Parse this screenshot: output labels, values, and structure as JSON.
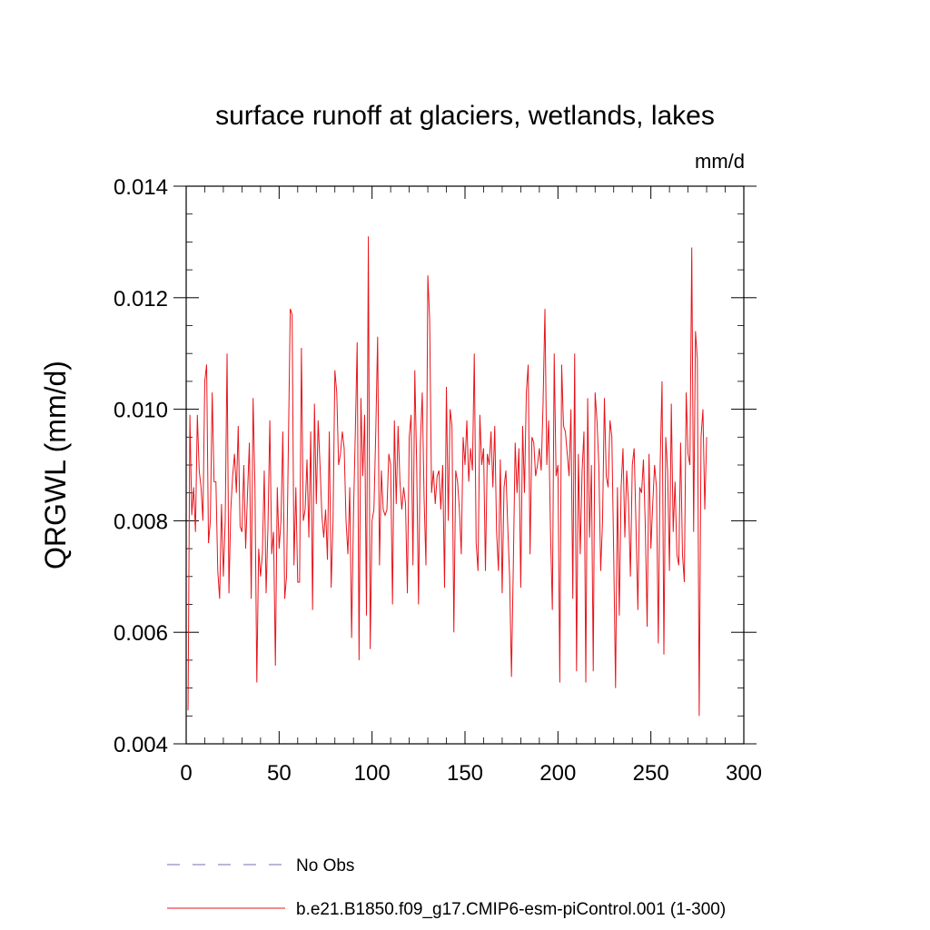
{
  "chart_data": {
    "type": "line",
    "title": "surface runoff at glaciers, wetlands, lakes",
    "units": "mm/d",
    "ylabel": "QRGWL  (mm/d)",
    "xlabel": "",
    "xlim": [
      0,
      300
    ],
    "ylim": [
      0.004,
      0.014
    ],
    "x_ticks": [
      0,
      50,
      100,
      150,
      200,
      250,
      300
    ],
    "x_tick_labels": [
      "0",
      "50",
      "100",
      "150",
      "200",
      "250",
      "300"
    ],
    "y_ticks": [
      0.004,
      0.006,
      0.008,
      0.01,
      0.012,
      0.014
    ],
    "y_tick_labels": [
      "0.004",
      "0.006",
      "0.008",
      "0.010",
      "0.012",
      "0.014"
    ],
    "grid": false,
    "legend_position": "bottom",
    "series": [
      {
        "name": "No Obs",
        "color": "#7b68b5",
        "dash": "dashed",
        "values": []
      },
      {
        "name": "b.e21.B1850.f09_g17.CMIP6-esm-piControl.001 (1-300)",
        "color": "#e8141b",
        "dash": "solid",
        "x_start": 1,
        "values": [
          0.0046,
          0.0099,
          0.0081,
          0.0086,
          0.0078,
          0.0099,
          0.0089,
          0.0086,
          0.008,
          0.0105,
          0.0108,
          0.0076,
          0.008,
          0.0103,
          0.0087,
          0.0087,
          0.0071,
          0.0066,
          0.0083,
          0.007,
          0.008,
          0.011,
          0.0067,
          0.0082,
          0.0088,
          0.0092,
          0.0085,
          0.0097,
          0.0079,
          0.0078,
          0.009,
          0.0075,
          0.0085,
          0.0094,
          0.0066,
          0.0102,
          0.0086,
          0.0051,
          0.0075,
          0.007,
          0.0074,
          0.0089,
          0.0067,
          0.0079,
          0.0098,
          0.0074,
          0.0078,
          0.0054,
          0.0086,
          0.0075,
          0.008,
          0.0096,
          0.0066,
          0.007,
          0.0094,
          0.0118,
          0.0117,
          0.0072,
          0.0086,
          0.0069,
          0.0069,
          0.0111,
          0.008,
          0.0082,
          0.0091,
          0.0077,
          0.0096,
          0.0064,
          0.0101,
          0.0083,
          0.0098,
          0.009,
          0.0081,
          0.0077,
          0.0082,
          0.0073,
          0.0096,
          0.0068,
          0.008,
          0.0107,
          0.0103,
          0.009,
          0.0092,
          0.0096,
          0.0093,
          0.008,
          0.0074,
          0.0086,
          0.0059,
          0.0081,
          0.0096,
          0.0112,
          0.0055,
          0.0102,
          0.0088,
          0.0099,
          0.0063,
          0.0131,
          0.0057,
          0.008,
          0.0082,
          0.0096,
          0.0113,
          0.0072,
          0.0089,
          0.0082,
          0.0081,
          0.0082,
          0.0092,
          0.009,
          0.0065,
          0.0098,
          0.0083,
          0.0097,
          0.0087,
          0.0082,
          0.0086,
          0.0083,
          0.0067,
          0.0095,
          0.0099,
          0.0072,
          0.0107,
          0.009,
          0.0065,
          0.0094,
          0.0103,
          0.0084,
          0.0072,
          0.0124,
          0.0116,
          0.0085,
          0.0089,
          0.0083,
          0.0088,
          0.0089,
          0.0082,
          0.009,
          0.0068,
          0.0104,
          0.008,
          0.01,
          0.0097,
          0.006,
          0.0089,
          0.0087,
          0.0082,
          0.0074,
          0.0095,
          0.009,
          0.0098,
          0.0087,
          0.0093,
          0.0089,
          0.011,
          0.0076,
          0.0071,
          0.0099,
          0.009,
          0.0093,
          0.0071,
          0.0092,
          0.009,
          0.0096,
          0.0086,
          0.0097,
          0.0078,
          0.0071,
          0.0091,
          0.0067,
          0.0086,
          0.0089,
          0.0079,
          0.007,
          0.0052,
          0.0072,
          0.0094,
          0.0085,
          0.0093,
          0.0068,
          0.0097,
          0.0085,
          0.0103,
          0.0108,
          0.0074,
          0.0095,
          0.0094,
          0.0088,
          0.009,
          0.0093,
          0.0089,
          0.0101,
          0.0118,
          0.009,
          0.0098,
          0.0078,
          0.0064,
          0.011,
          0.0088,
          0.009,
          0.0051,
          0.0108,
          0.0097,
          0.0096,
          0.0092,
          0.0088,
          0.01,
          0.0066,
          0.011,
          0.0053,
          0.0092,
          0.0074,
          0.0089,
          0.0096,
          0.0051,
          0.0102,
          0.0077,
          0.009,
          0.0053,
          0.0103,
          0.0098,
          0.009,
          0.0071,
          0.008,
          0.0102,
          0.0088,
          0.0086,
          0.0098,
          0.0095,
          0.0074,
          0.005,
          0.0086,
          0.0063,
          0.0086,
          0.0093,
          0.0077,
          0.0089,
          0.0083,
          0.007,
          0.009,
          0.0093,
          0.0079,
          0.0064,
          0.0086,
          0.0085,
          0.0091,
          0.0079,
          0.0061,
          0.0092,
          0.0075,
          0.0083,
          0.009,
          0.0086,
          0.0058,
          0.009,
          0.0105,
          0.0056,
          0.0095,
          0.0089,
          0.0071,
          0.0101,
          0.0078,
          0.0087,
          0.0074,
          0.0072,
          0.0094,
          0.0074,
          0.0069,
          0.0103,
          0.0092,
          0.009,
          0.0129,
          0.0078,
          0.0114,
          0.0109,
          0.0045,
          0.0095,
          0.01,
          0.0082,
          0.0095
        ]
      }
    ]
  }
}
